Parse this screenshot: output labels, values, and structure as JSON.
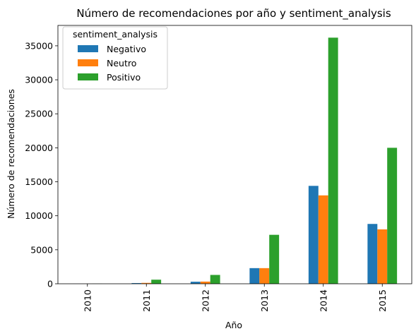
{
  "chart_data": {
    "type": "bar",
    "title": "Número de recomendaciones por año y sentiment_analysis",
    "xlabel": "Año",
    "ylabel": "Número de recomendaciones",
    "categories": [
      "2010",
      "2011",
      "2012",
      "2013",
      "2014",
      "2015"
    ],
    "series": [
      {
        "name": "Negativo",
        "color": "#1f77b4",
        "values": [
          2,
          100,
          300,
          2300,
          14400,
          8800
        ]
      },
      {
        "name": "Neutro",
        "color": "#ff7f0e",
        "values": [
          2,
          130,
          320,
          2300,
          13000,
          8000
        ]
      },
      {
        "name": "Positivo",
        "color": "#2ca02c",
        "values": [
          10,
          600,
          1300,
          7200,
          36200,
          20000
        ]
      }
    ],
    "ylim": [
      0,
      38000
    ],
    "yticks": [
      0,
      5000,
      10000,
      15000,
      20000,
      25000,
      30000,
      35000
    ],
    "grid": false,
    "legend": {
      "title": "sentiment_analysis",
      "position": "top-left"
    }
  }
}
